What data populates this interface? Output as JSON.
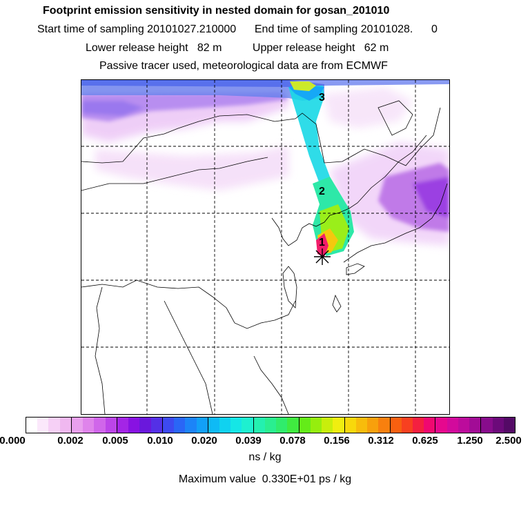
{
  "header": {
    "title": "Footprint emission sensitivity in nested domain for gosan_201010",
    "sampling": "Start time of sampling 20101027.210000      End time of sampling 20101028.      0",
    "release_height": "Lower release height   82 m          Upper release height   62 m",
    "tracer": "Passive tracer used, meteorological data are from ECMWF"
  },
  "map": {
    "markers": [
      "1",
      "2",
      "3"
    ],
    "station_symbol": "*"
  },
  "colorbar": {
    "ticks": [
      "0.000",
      "0.002",
      "0.005",
      "0.010",
      "0.020",
      "0.039",
      "0.078",
      "0.156",
      "0.312",
      "0.625",
      "1.250",
      "2.500"
    ],
    "colors": [
      "#ffffff",
      "#fbe8fb",
      "#f6d0f6",
      "#f0b8f0",
      "#e9a0ee",
      "#df84eb",
      "#d066ea",
      "#bc45e8",
      "#a425e6",
      "#8812e2",
      "#6a18dc",
      "#5430e6",
      "#3d4af0",
      "#2a66f6",
      "#1c84f8",
      "#12a0f8",
      "#0fbaf5",
      "#10d2f0",
      "#15e6e6",
      "#1ef0d0",
      "#24f0b0",
      "#2aee90",
      "#30ec6c",
      "#40ea40",
      "#64ec18",
      "#96ee0e",
      "#c8ee0c",
      "#f0ee10",
      "#f8d80c",
      "#f8bc0c",
      "#f8a00c",
      "#f8800e",
      "#f86010",
      "#f84020",
      "#f42040",
      "#f00870",
      "#e6088e",
      "#d20a9c",
      "#bc0c9c",
      "#a20c96",
      "#880c8c",
      "#6c0a7a",
      "#540a66"
    ]
  },
  "units": "ns / kg",
  "maxvalue": "Maximum value  0.330E+01 ps / kg"
}
